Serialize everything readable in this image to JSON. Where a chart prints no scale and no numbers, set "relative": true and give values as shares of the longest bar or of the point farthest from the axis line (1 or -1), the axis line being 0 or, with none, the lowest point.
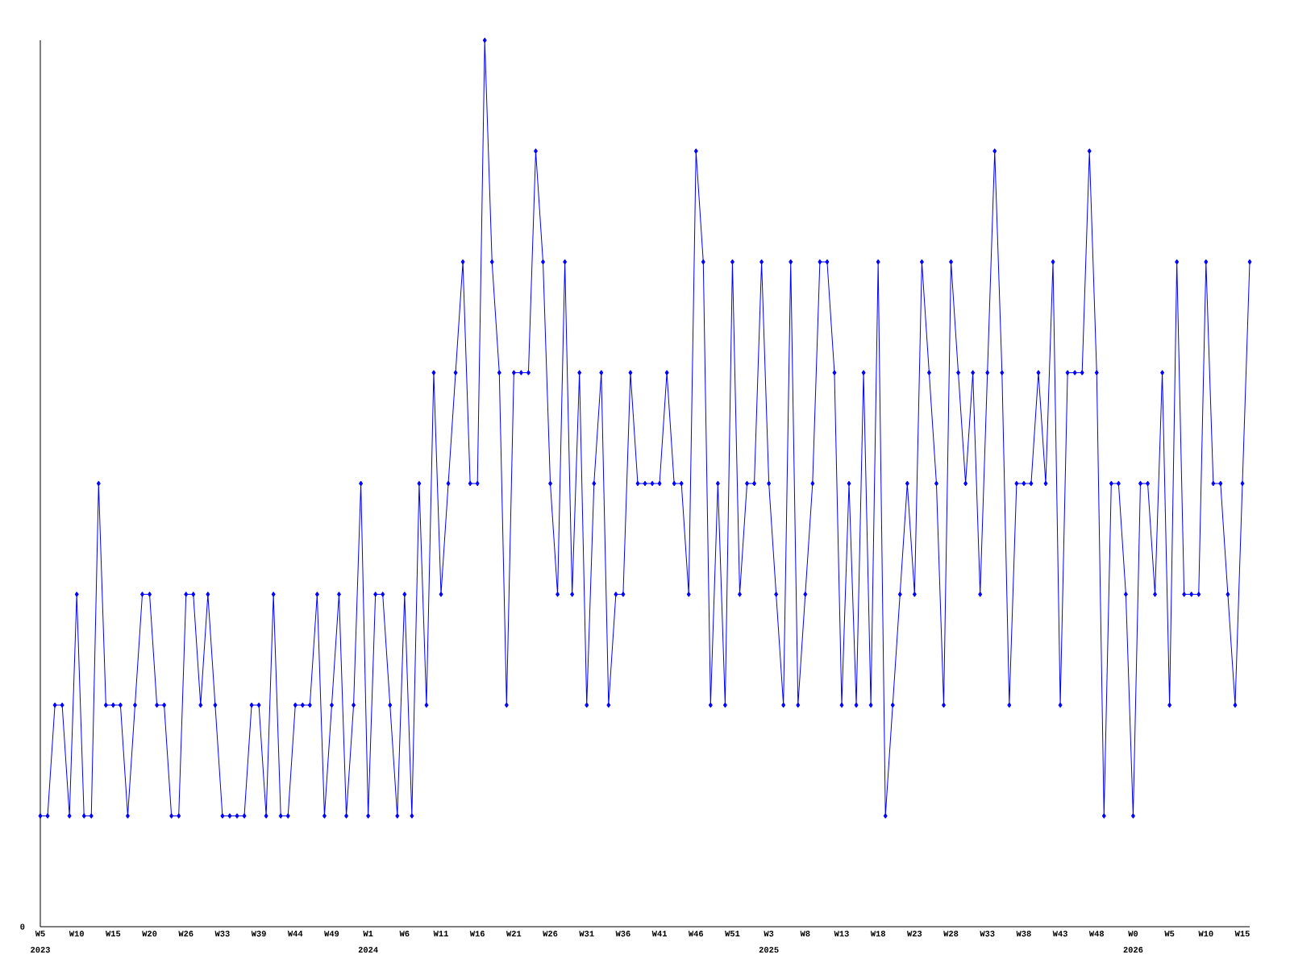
{
  "chart_data": {
    "type": "line",
    "relative": true,
    "color": "#0000ff",
    "marker": "diamond",
    "line_style": "solid",
    "grid": false,
    "categories": [
      "W5",
      null,
      null,
      null,
      null,
      "W10",
      null,
      null,
      null,
      null,
      "W15",
      null,
      null,
      null,
      null,
      "W20",
      null,
      null,
      null,
      null,
      "W26",
      null,
      null,
      null,
      null,
      "W33",
      null,
      null,
      null,
      null,
      "W39",
      null,
      null,
      null,
      null,
      "W44",
      null,
      null,
      null,
      null,
      "W49",
      null,
      null,
      null,
      null,
      "W1",
      null,
      null,
      null,
      null,
      "W6",
      null,
      null,
      null,
      null,
      "W11",
      null,
      null,
      null,
      null,
      "W16",
      null,
      null,
      null,
      null,
      "W21",
      null,
      null,
      null,
      null,
      "W26",
      null,
      null,
      null,
      null,
      "W31",
      null,
      null,
      null,
      null,
      "W36",
      null,
      null,
      null,
      null,
      "W41",
      null,
      null,
      null,
      null,
      "W46",
      null,
      null,
      null,
      null,
      "W51",
      null,
      null,
      null,
      null,
      "W3",
      null,
      null,
      null,
      null,
      "W8",
      null,
      null,
      null,
      null,
      "W13",
      null,
      null,
      null,
      null,
      "W18",
      null,
      null,
      null,
      null,
      "W23",
      null,
      null,
      null,
      null,
      "W28",
      null,
      null,
      null,
      null,
      "W33",
      null,
      null,
      null,
      null,
      "W38",
      null,
      null,
      null,
      null,
      "W43",
      null,
      null,
      null,
      null,
      "W48",
      null,
      null,
      null,
      null,
      "W0",
      null,
      null,
      null,
      null,
      "W5",
      null,
      null,
      null,
      null,
      "W10",
      null,
      null,
      null,
      null,
      "W15",
      null
    ],
    "values": [
      0.125,
      0.125,
      0.25,
      0.25,
      0.125,
      0.375,
      0.125,
      0.125,
      0.5,
      0.25,
      0.25,
      0.25,
      0.125,
      0.25,
      0.375,
      0.375,
      0.25,
      0.25,
      0.125,
      0.125,
      0.375,
      0.375,
      0.25,
      0.375,
      0.25,
      0.125,
      0.125,
      0.125,
      0.125,
      0.25,
      0.25,
      0.125,
      0.375,
      0.125,
      0.125,
      0.25,
      0.25,
      0.25,
      0.375,
      0.125,
      0.25,
      0.375,
      0.125,
      0.25,
      0.5,
      0.125,
      0.375,
      0.375,
      0.25,
      0.125,
      0.375,
      0.125,
      0.5,
      0.25,
      0.625,
      0.375,
      0.5,
      0.625,
      0.75,
      0.5,
      0.5,
      1,
      0.75,
      0.625,
      0.25,
      0.625,
      0.625,
      0.625,
      0.875,
      0.75,
      0.5,
      0.375,
      0.75,
      0.375,
      0.625,
      0.25,
      0.5,
      0.625,
      0.25,
      0.375,
      0.375,
      0.625,
      0.5,
      0.5,
      0.5,
      0.5,
      0.625,
      0.5,
      0.5,
      0.375,
      0.875,
      0.75,
      0.25,
      0.5,
      0.25,
      0.75,
      0.375,
      0.5,
      0.5,
      0.75,
      0.5,
      0.375,
      0.25,
      0.75,
      0.25,
      0.375,
      0.5,
      0.75,
      0.75,
      0.625,
      0.25,
      0.5,
      0.25,
      0.625,
      0.25,
      0.75,
      0.125,
      0.25,
      0.375,
      0.5,
      0.375,
      0.75,
      0.625,
      0.5,
      0.25,
      0.75,
      0.625,
      0.5,
      0.625,
      0.375,
      0.625,
      0.875,
      0.625,
      0.25,
      0.5,
      0.5,
      0.5,
      0.625,
      0.5,
      0.75,
      0.25,
      0.625,
      0.625,
      0.625,
      0.875,
      0.625,
      0.125,
      0.5,
      0.5,
      0.375,
      0.125,
      0.5,
      0.5,
      0.375,
      0.625,
      0.25,
      0.75,
      0.375,
      0.375,
      0.375,
      0.75,
      0.5,
      0.5,
      0.375,
      0.25,
      0.5,
      0.75
    ],
    "annotations": [
      "0",
      "2023",
      "2024",
      "2025",
      "2026"
    ]
  }
}
